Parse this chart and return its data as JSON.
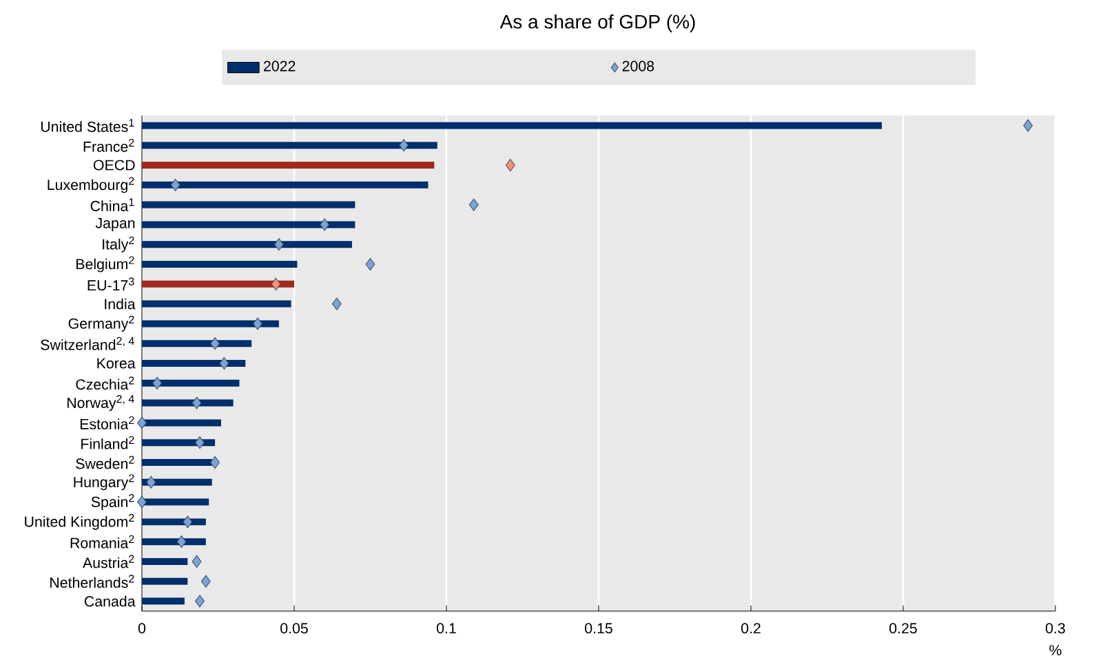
{
  "chart_data": {
    "type": "bar",
    "orientation": "horizontal",
    "title": "As a share of GDP (%)",
    "xlabel": "%",
    "categories": [
      "United States$^{1}$",
      "France$^{2}$",
      "OECD",
      "Luxembourg$^{2}$",
      "China$^{1}$",
      "Japan",
      "Italy$^{2}$",
      "Belgium$^{2}$",
      "EU-17$^{3}$",
      "India",
      "Germany$^{2}$",
      "Switzerland$^{2, 4}$",
      "Korea",
      "Czechia$^{2}$",
      "Norway$^{2, 4}$",
      "Estonia$^{2}$",
      "Finland$^{2}$",
      "Sweden$^{2}$",
      "Hungary$^{2}$",
      "Spain$^{2}$",
      "United Kingdom$^{2}$",
      "Romania$^{2}$",
      "Austria$^{2}$",
      "Netherlands$^{2}$",
      "Canada"
    ],
    "series": [
      {
        "name": "2022",
        "color": "#002f6c",
        "colors": [
          "#002f6c",
          "#002f6c",
          "#9e2a1e",
          "#002f6c",
          "#002f6c",
          "#002f6c",
          "#002f6c",
          "#002f6c",
          "#9e2a1e",
          "#002f6c",
          "#002f6c",
          "#002f6c",
          "#002f6c",
          "#002f6c",
          "#002f6c",
          "#002f6c",
          "#002f6c",
          "#002f6c",
          "#002f6c",
          "#002f6c",
          "#002f6c",
          "#002f6c",
          "#002f6c",
          "#002f6c",
          "#002f6c"
        ],
        "values": [
          0.243,
          0.097,
          0.096,
          0.094,
          0.07,
          0.07,
          0.069,
          0.051,
          0.05,
          0.049,
          0.045,
          0.036,
          0.034,
          0.032,
          0.03,
          0.026,
          0.024,
          0.023,
          0.023,
          0.022,
          0.021,
          0.021,
          0.015,
          0.015,
          0.014
        ]
      },
      {
        "name": "2008",
        "type": "scatter",
        "marker": "diamond",
        "color": "#7ba3d4",
        "colors": [
          "#7ba3d4",
          "#7ba3d4",
          "#ff8f6a",
          "#7ba3d4",
          "#7ba3d4",
          "#7ba3d4",
          "#7ba3d4",
          "#7ba3d4",
          "#ff8f6a",
          "#7ba3d4",
          "#7ba3d4",
          "#7ba3d4",
          "#7ba3d4",
          "#7ba3d4",
          "#7ba3d4",
          "#7ba3d4",
          "#7ba3d4",
          "#7ba3d4",
          "#7ba3d4",
          "#7ba3d4",
          "#7ba3d4",
          "#7ba3d4",
          "#7ba3d4",
          "#7ba3d4",
          "#7ba3d4"
        ],
        "x": [
          "United States$^{1}$",
          "France$^{2}$",
          "OECD",
          "Luxembourg$^{2}$",
          "China$^{1}$",
          "Japan",
          "Italy$^{2}$",
          "Belgium$^{2}$",
          "EU-17$^{3}$",
          "India",
          "Germany$^{2}$",
          "Switzerland$^{2, 4}$",
          "Korea",
          "Czechia$^{2}$",
          "Norway$^{2, 4}$",
          "Estonia$^{2}$",
          "Finland$^{2}$",
          "Sweden$^{2}$",
          "Hungary$^{2}$",
          "Spain$^{2}$",
          "United Kingdom$^{2}$",
          "Romania$^{2}$",
          "Austria$^{2}$",
          "Netherlands$^{2}$",
          "Canada"
        ],
        "values": [
          0.291,
          0.086,
          0.121,
          0.011,
          0.109,
          0.06,
          0.045,
          0.075,
          0.044,
          0.064,
          0.038,
          0.024,
          0.027,
          0.005,
          0.018,
          0.0,
          0.019,
          0.024,
          0.003,
          0.0,
          0.015,
          0.013,
          0.018,
          0.021,
          0.019
        ]
      }
    ],
    "xlim": [
      0,
      0.3
    ],
    "xticks": [
      0,
      0.05,
      0.1,
      0.15,
      0.2,
      0.25,
      0.3
    ],
    "grid": "x",
    "legend": "top"
  }
}
